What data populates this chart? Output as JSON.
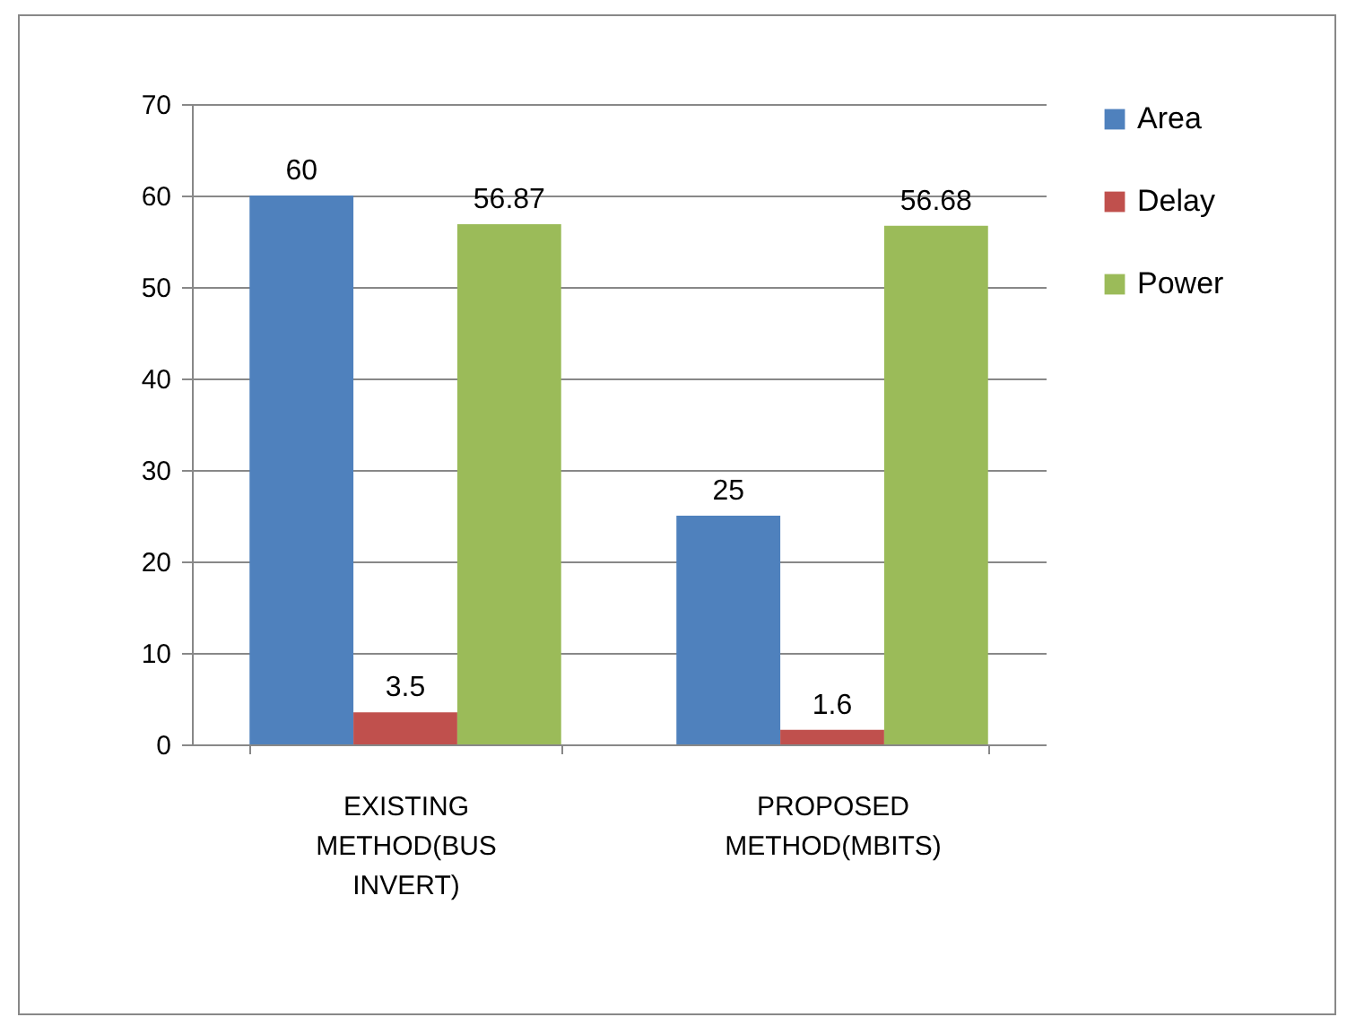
{
  "chart_data": {
    "type": "bar",
    "categories": [
      "EXISTING METHOD(BUS INVERT)",
      "PROPOSED METHOD(MBITS)"
    ],
    "series": [
      {
        "name": "Area",
        "color": "#4f81bd",
        "values": [
          60,
          25
        ]
      },
      {
        "name": "Delay",
        "color": "#c0504d",
        "values": [
          3.5,
          1.6
        ]
      },
      {
        "name": "Power",
        "color": "#9bbb59",
        "values": [
          56.87,
          56.68
        ]
      }
    ],
    "ylim": [
      0,
      70
    ],
    "yticks": [
      0,
      10,
      20,
      30,
      40,
      50,
      60,
      70
    ],
    "grid": "y",
    "legend": "right",
    "data_labels": true
  }
}
